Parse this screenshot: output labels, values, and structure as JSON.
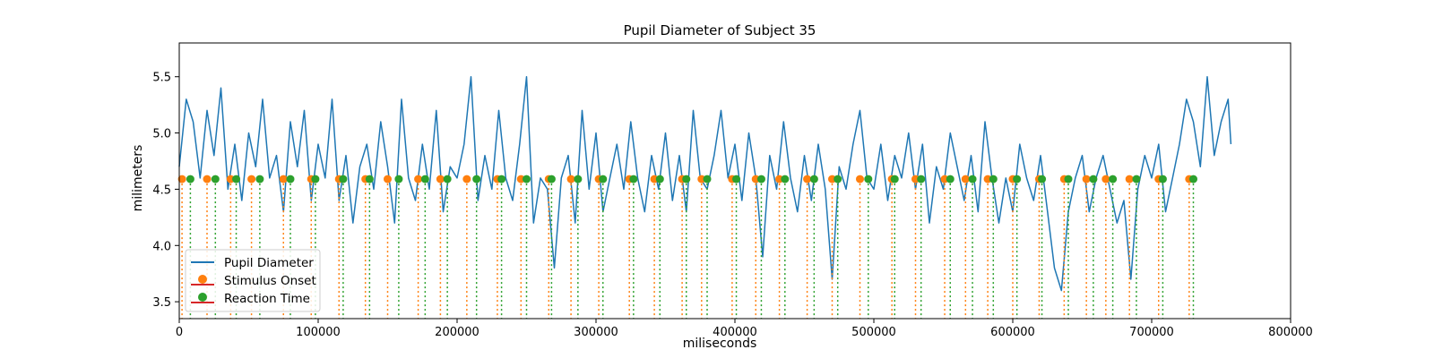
{
  "chart_data": {
    "type": "line",
    "title": "Pupil Diameter of Subject 35",
    "xlabel": "miliseconds",
    "ylabel": "milimeters",
    "xlim": [
      0,
      800000
    ],
    "ylim": [
      3.35,
      5.8
    ],
    "xticks": [
      0,
      100000,
      200000,
      300000,
      400000,
      500000,
      600000,
      700000,
      800000
    ],
    "xtick_labels": [
      "0",
      "100000",
      "200000",
      "300000",
      "400000",
      "500000",
      "600000",
      "700000",
      "800000"
    ],
    "yticks": [
      3.5,
      4.0,
      4.5,
      5.0,
      5.5
    ],
    "ytick_labels": [
      "3.5",
      "4.0",
      "4.5",
      "5.0",
      "5.5"
    ],
    "grid": false,
    "legend_position": "lower-left",
    "colors": {
      "pupil": "#1f77b4",
      "stimulus": "#ff7f0e",
      "reaction": "#2ca02c",
      "stem_base": "#d62728"
    },
    "series": [
      {
        "name": "Pupil Diameter",
        "kind": "line",
        "x": [
          0,
          5000,
          10000,
          15000,
          20000,
          25000,
          30000,
          35000,
          40000,
          45000,
          50000,
          55000,
          60000,
          65000,
          70000,
          75000,
          80000,
          85000,
          90000,
          95000,
          100000,
          105000,
          110000,
          115000,
          120000,
          125000,
          130000,
          135000,
          140000,
          145000,
          150000,
          155000,
          160000,
          165000,
          170000,
          175000,
          180000,
          185000,
          190000,
          195000,
          200000,
          205000,
          210000,
          215000,
          220000,
          225000,
          230000,
          235000,
          240000,
          245000,
          250000,
          255000,
          260000,
          265000,
          270000,
          275000,
          280000,
          285000,
          290000,
          295000,
          300000,
          305000,
          310000,
          315000,
          320000,
          325000,
          330000,
          335000,
          340000,
          345000,
          350000,
          355000,
          360000,
          365000,
          370000,
          375000,
          380000,
          385000,
          390000,
          395000,
          400000,
          405000,
          410000,
          415000,
          420000,
          425000,
          430000,
          435000,
          440000,
          445000,
          450000,
          455000,
          460000,
          465000,
          470000,
          475000,
          480000,
          485000,
          490000,
          495000,
          500000,
          505000,
          510000,
          515000,
          520000,
          525000,
          530000,
          535000,
          540000,
          545000,
          550000,
          555000,
          560000,
          565000,
          570000,
          575000,
          580000,
          585000,
          590000,
          595000,
          600000,
          605000,
          610000,
          615000,
          620000,
          625000,
          630000,
          635000,
          640000,
          645000,
          650000,
          655000,
          660000,
          665000,
          670000,
          675000,
          680000,
          685000,
          690000,
          695000,
          700000,
          705000,
          710000,
          715000,
          720000,
          725000,
          730000,
          735000,
          740000,
          745000,
          750000,
          755000,
          757000
        ],
        "y": [
          4.7,
          5.3,
          5.1,
          4.6,
          5.2,
          4.8,
          5.4,
          4.5,
          4.9,
          4.4,
          5.0,
          4.7,
          5.3,
          4.6,
          4.8,
          4.3,
          5.1,
          4.7,
          5.2,
          4.4,
          4.9,
          4.6,
          5.3,
          4.4,
          4.8,
          4.2,
          4.7,
          4.9,
          4.5,
          5.1,
          4.7,
          4.2,
          5.3,
          4.6,
          4.4,
          4.9,
          4.5,
          5.2,
          4.3,
          4.7,
          4.6,
          4.9,
          5.5,
          4.4,
          4.8,
          4.5,
          5.2,
          4.6,
          4.4,
          4.9,
          5.5,
          4.2,
          4.6,
          4.5,
          3.8,
          4.6,
          4.8,
          4.2,
          5.2,
          4.5,
          5.0,
          4.3,
          4.6,
          4.9,
          4.5,
          5.1,
          4.6,
          4.3,
          4.8,
          4.5,
          5.0,
          4.4,
          4.8,
          4.3,
          5.2,
          4.6,
          4.5,
          4.8,
          5.2,
          4.6,
          4.9,
          4.4,
          5.0,
          4.6,
          3.9,
          4.8,
          4.5,
          5.1,
          4.6,
          4.3,
          4.8,
          4.4,
          4.9,
          4.5,
          3.7,
          4.7,
          4.5,
          4.9,
          5.2,
          4.6,
          4.5,
          4.9,
          4.4,
          4.8,
          4.6,
          5.0,
          4.5,
          4.9,
          4.2,
          4.7,
          4.5,
          5.0,
          4.7,
          4.4,
          4.8,
          4.3,
          5.1,
          4.6,
          4.2,
          4.6,
          4.3,
          4.9,
          4.6,
          4.4,
          4.8,
          4.3,
          3.8,
          3.6,
          4.3,
          4.6,
          4.8,
          4.3,
          4.6,
          4.8,
          4.5,
          4.2,
          4.4,
          3.7,
          4.5,
          4.8,
          4.6,
          4.9,
          4.3,
          4.6,
          4.9,
          5.3,
          5.1,
          4.7,
          5.5,
          4.8,
          5.1,
          5.3,
          4.9
        ]
      },
      {
        "name": "Stimulus Onset",
        "kind": "stem",
        "baseline": 4.59,
        "x": [
          2000,
          20000,
          37000,
          52000,
          75000,
          95000,
          115000,
          134000,
          150000,
          172000,
          188000,
          207000,
          229000,
          246000,
          266000,
          282000,
          302000,
          324000,
          342000,
          362000,
          376000,
          398000,
          415000,
          432000,
          452000,
          470000,
          490000,
          513000,
          530000,
          551000,
          566000,
          582000,
          600000,
          619000,
          637000,
          653000,
          667000,
          684000,
          705000,
          727000
        ],
        "y": [
          4.59,
          4.59,
          4.59,
          4.59,
          4.59,
          4.59,
          4.59,
          4.59,
          4.59,
          4.59,
          4.59,
          4.59,
          4.59,
          4.59,
          4.59,
          4.59,
          4.59,
          4.59,
          4.59,
          4.59,
          4.59,
          4.59,
          4.59,
          4.59,
          4.59,
          4.59,
          4.59,
          4.59,
          4.59,
          4.59,
          4.59,
          4.59,
          4.59,
          4.59,
          4.59,
          4.59,
          4.59,
          4.59,
          4.59,
          4.59
        ]
      },
      {
        "name": "Reaction Time",
        "kind": "stem",
        "baseline": 4.59,
        "x": [
          8000,
          26000,
          41000,
          58000,
          80000,
          98000,
          118000,
          137000,
          158000,
          177000,
          193000,
          214000,
          232000,
          250000,
          268000,
          287000,
          305000,
          327000,
          346000,
          365000,
          380000,
          401000,
          419000,
          436000,
          457000,
          474000,
          496000,
          515000,
          534000,
          555000,
          571000,
          586000,
          603000,
          621000,
          640000,
          658000,
          672000,
          689000,
          708000,
          730000
        ],
        "y": [
          4.59,
          4.59,
          4.59,
          4.59,
          4.59,
          4.59,
          4.59,
          4.59,
          4.59,
          4.59,
          4.59,
          4.59,
          4.59,
          4.59,
          4.59,
          4.59,
          4.59,
          4.59,
          4.59,
          4.59,
          4.59,
          4.59,
          4.59,
          4.59,
          4.59,
          4.59,
          4.59,
          4.59,
          4.59,
          4.59,
          4.59,
          4.59,
          4.59,
          4.59,
          4.59,
          4.59,
          4.59,
          4.59,
          4.59,
          4.59
        ]
      }
    ]
  }
}
